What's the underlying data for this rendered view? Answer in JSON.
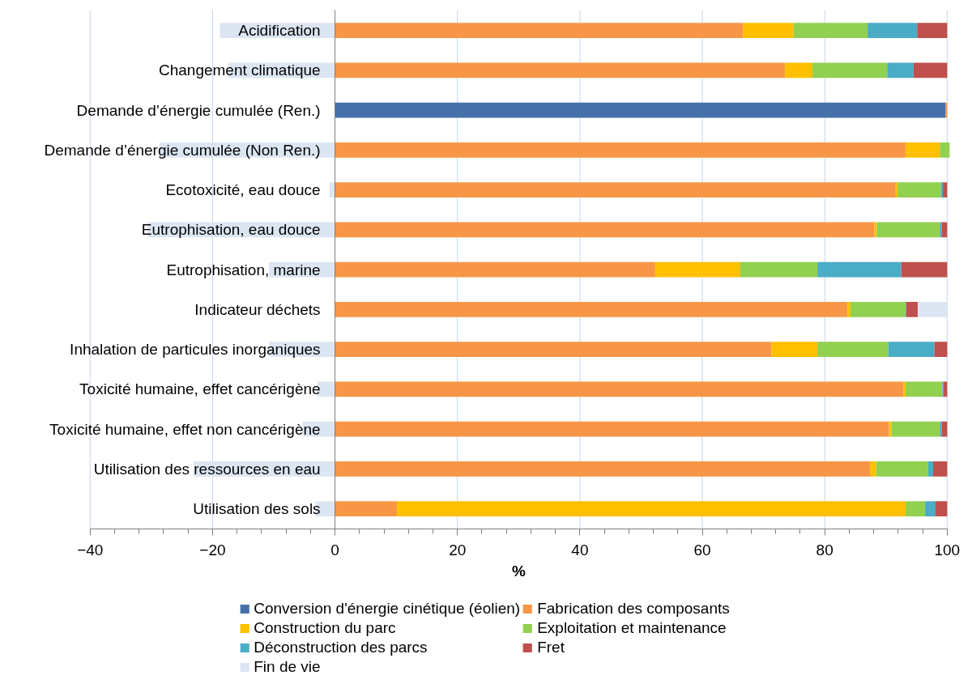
{
  "chart_data": {
    "type": "bar",
    "orientation": "horizontal",
    "stacked": true,
    "xlabel": "%",
    "categories": [
      "Acidification",
      "Changement climatique",
      "Demande d’énergie cumulée (Ren.)",
      "Demande d’énergie cumulée (Non Ren.)",
      "Ecotoxicité, eau douce",
      "Eutrophisation, eau douce",
      "Eutrophisation, marine",
      "Indicateur déchets",
      "Inhalation de particules inorganiques",
      "Toxicité humaine, effet cancérigène",
      "Toxicité humaine, effet non cancérigène",
      "Utilisation des ressources en eau",
      "Utilisation des sols"
    ],
    "series": [
      {
        "name": "Conversion d'énergie cinétique (éolien)",
        "color": "#4571a8",
        "values": [
          null,
          null,
          99.7,
          null,
          null,
          null,
          null,
          null,
          null,
          null,
          null,
          null,
          null
        ]
      },
      {
        "name": "Fabrication des composants",
        "color": "#f79646",
        "values": [
          66.7,
          73.5,
          0.3,
          93.2,
          91.6,
          88.1,
          52.3,
          83.7,
          71.3,
          92.9,
          90.5,
          87.4,
          10.1
        ]
      },
      {
        "name": "Construction du parc",
        "color": "#ffc000",
        "values": [
          8.2,
          4.5,
          null,
          5.6,
          0.3,
          0.4,
          13.9,
          0.5,
          7.5,
          0.3,
          0.4,
          1.0,
          83.1
        ]
      },
      {
        "name": "Exploitation et maintenance",
        "color": "#92d050",
        "values": [
          12.1,
          12.2,
          null,
          1.6,
          7.1,
          10.3,
          12.6,
          9.0,
          11.6,
          6.0,
          7.9,
          8.5,
          3.2
        ]
      },
      {
        "name": "Déconstruction des parcs",
        "color": "#4bacc6",
        "values": [
          8.1,
          4.3,
          null,
          null,
          0.3,
          0.3,
          13.7,
          0.1,
          7.5,
          0.2,
          0.3,
          0.8,
          1.7
        ]
      },
      {
        "name": "Fret",
        "color": "#c0504d",
        "values": [
          4.9,
          5.5,
          null,
          null,
          0.7,
          0.9,
          7.5,
          1.9,
          2.1,
          0.6,
          0.9,
          2.3,
          1.9
        ]
      },
      {
        "name": "Fin de vie",
        "color": "#dce6f2",
        "values": [
          -18.8,
          -17.4,
          null,
          -28.7,
          -0.9,
          -30.6,
          -10.8,
          4.8,
          -10.8,
          -2.9,
          -5.3,
          -23.1,
          -3.2
        ]
      }
    ],
    "xlim": [
      -40,
      100
    ],
    "xticks": [
      -40,
      -20,
      0,
      20,
      40,
      60,
      80,
      100
    ],
    "grid": "x",
    "legend": "bottom"
  }
}
